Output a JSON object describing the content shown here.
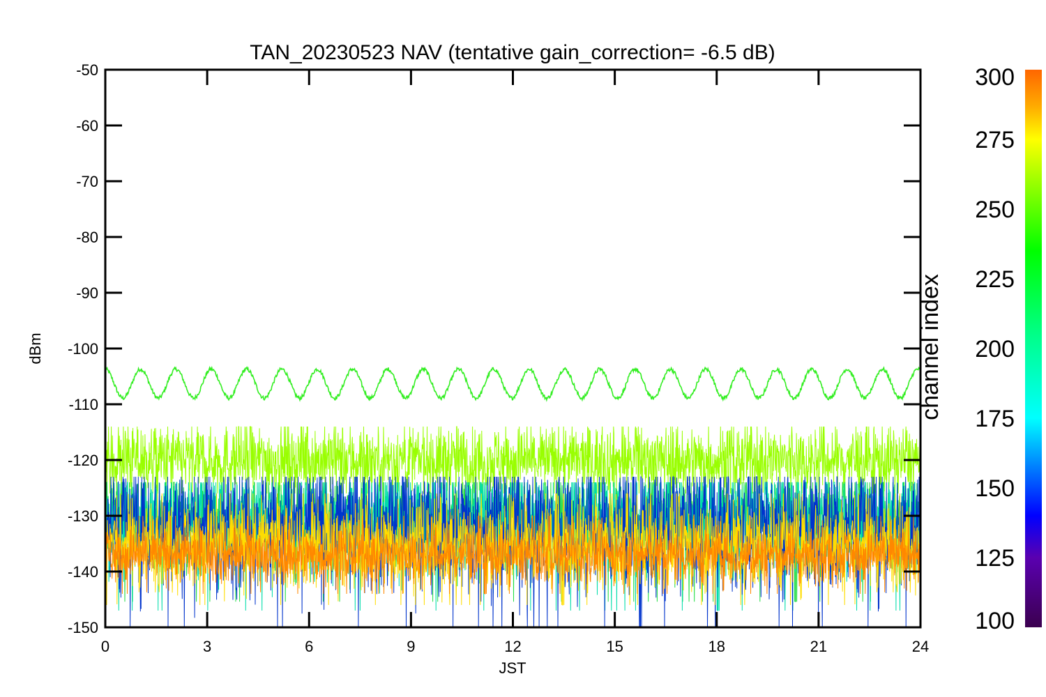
{
  "chart_data": {
    "type": "line",
    "title": "TAN_20230523 NAV (tentative gain_correction= -6.5 dB)",
    "xlabel": "JST",
    "ylabel": "dBm",
    "xlim": [
      0,
      24
    ],
    "ylim": [
      -150,
      -50
    ],
    "x_ticks": [
      0,
      3,
      6,
      9,
      12,
      15,
      18,
      21,
      24
    ],
    "y_ticks": [
      -50,
      -60,
      -70,
      -80,
      -90,
      -100,
      -110,
      -120,
      -130,
      -140,
      -150
    ],
    "grid": false,
    "colorbar": {
      "label": "channel index",
      "range": [
        100,
        300
      ],
      "ticks": [
        100,
        125,
        150,
        175,
        200,
        225,
        250,
        275,
        300
      ],
      "stops": [
        {
          "v": 100,
          "color": "#3b004f"
        },
        {
          "v": 125,
          "color": "#5a00b0"
        },
        {
          "v": 140,
          "color": "#0000ff"
        },
        {
          "v": 175,
          "color": "#00ffff"
        },
        {
          "v": 205,
          "color": "#00ff88"
        },
        {
          "v": 235,
          "color": "#00ff00"
        },
        {
          "v": 262,
          "color": "#aaff00"
        },
        {
          "v": 275,
          "color": "#ffff00"
        },
        {
          "v": 287,
          "color": "#ffaa00"
        },
        {
          "v": 300,
          "color": "#ff6600"
        }
      ]
    },
    "series": [
      {
        "channel": 240,
        "color": "#33ee22",
        "kind": "sine",
        "mean": -106.3,
        "amplitude": 2.6,
        "period_h": 1.04,
        "noise": 0.35
      },
      {
        "channel": 262,
        "color": "#99ff00",
        "kind": "noise_band",
        "mean": -120,
        "spread": 3.2,
        "min": -126,
        "max": -114
      },
      {
        "channel": 225,
        "color": "#22dd44",
        "kind": "noise_band",
        "mean": -131,
        "spread": 4.5,
        "min": -148,
        "max": -124
      },
      {
        "channel": 200,
        "color": "#00ddaa",
        "kind": "noise_band",
        "mean": -131,
        "spread": 5,
        "min": -149,
        "max": -124
      },
      {
        "channel": 145,
        "color": "#0033cc",
        "kind": "noise_band",
        "mean": -132,
        "spread": 6,
        "min": -150,
        "max": -123
      },
      {
        "channel": 275,
        "color": "#ffdd00",
        "kind": "noise_band",
        "mean": -135,
        "spread": 4,
        "min": -146,
        "max": -126
      },
      {
        "channel": 295,
        "color": "#ff8800",
        "kind": "noise_band",
        "mean": -137,
        "spread": 2.6,
        "min": -144,
        "max": -130
      }
    ]
  }
}
